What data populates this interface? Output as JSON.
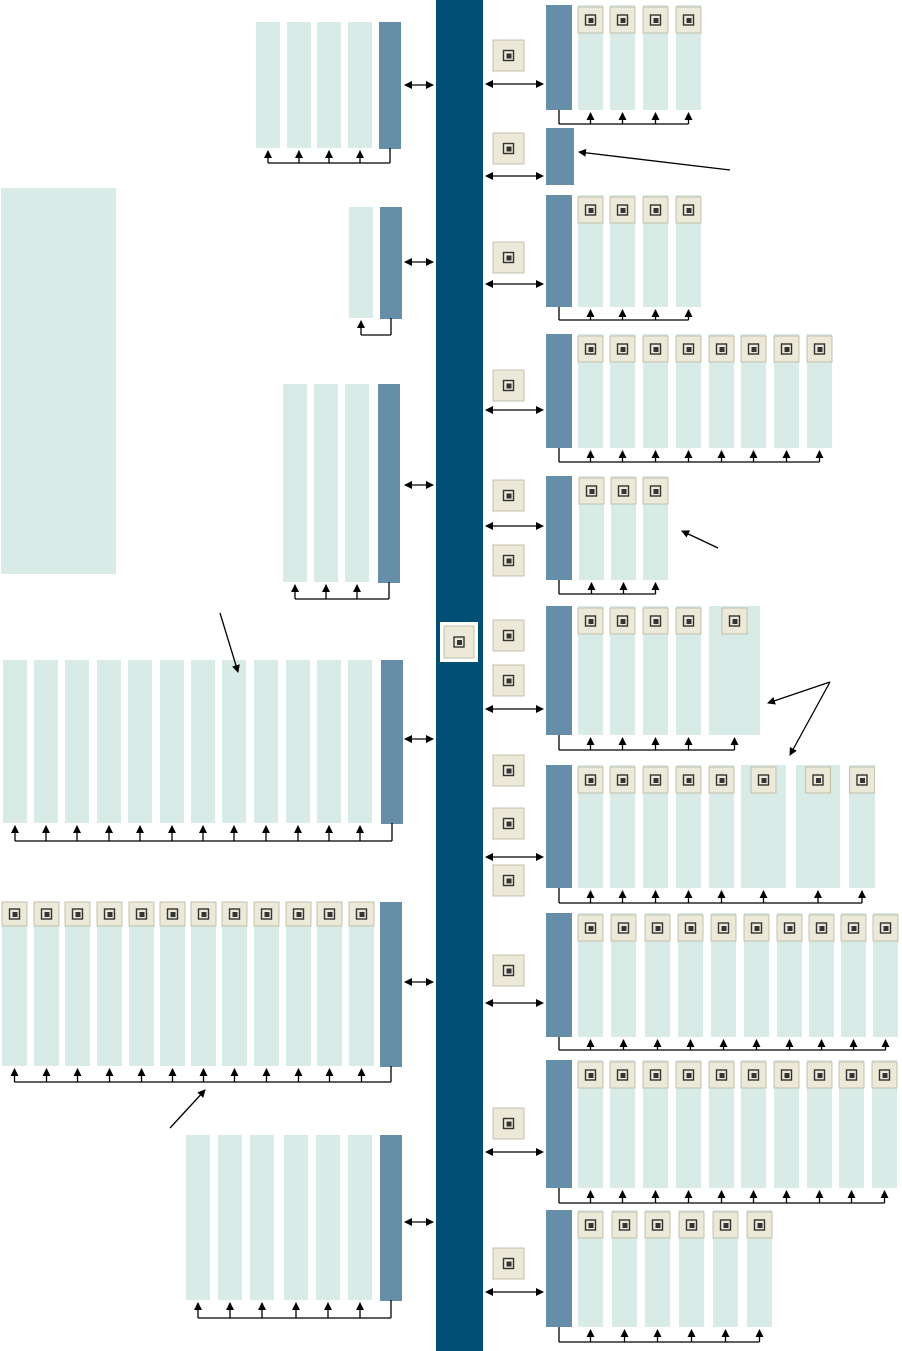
{
  "colors": {
    "central_bar": "#024f75",
    "group_head": "#678ea8",
    "column": "#d8ebe7",
    "icon_bg": "#ece9d8",
    "icon_glyph": "#333333",
    "line": "#000000"
  },
  "central_icon": "pointer-arrow-icon",
  "left_panel": "empty-panel"
}
